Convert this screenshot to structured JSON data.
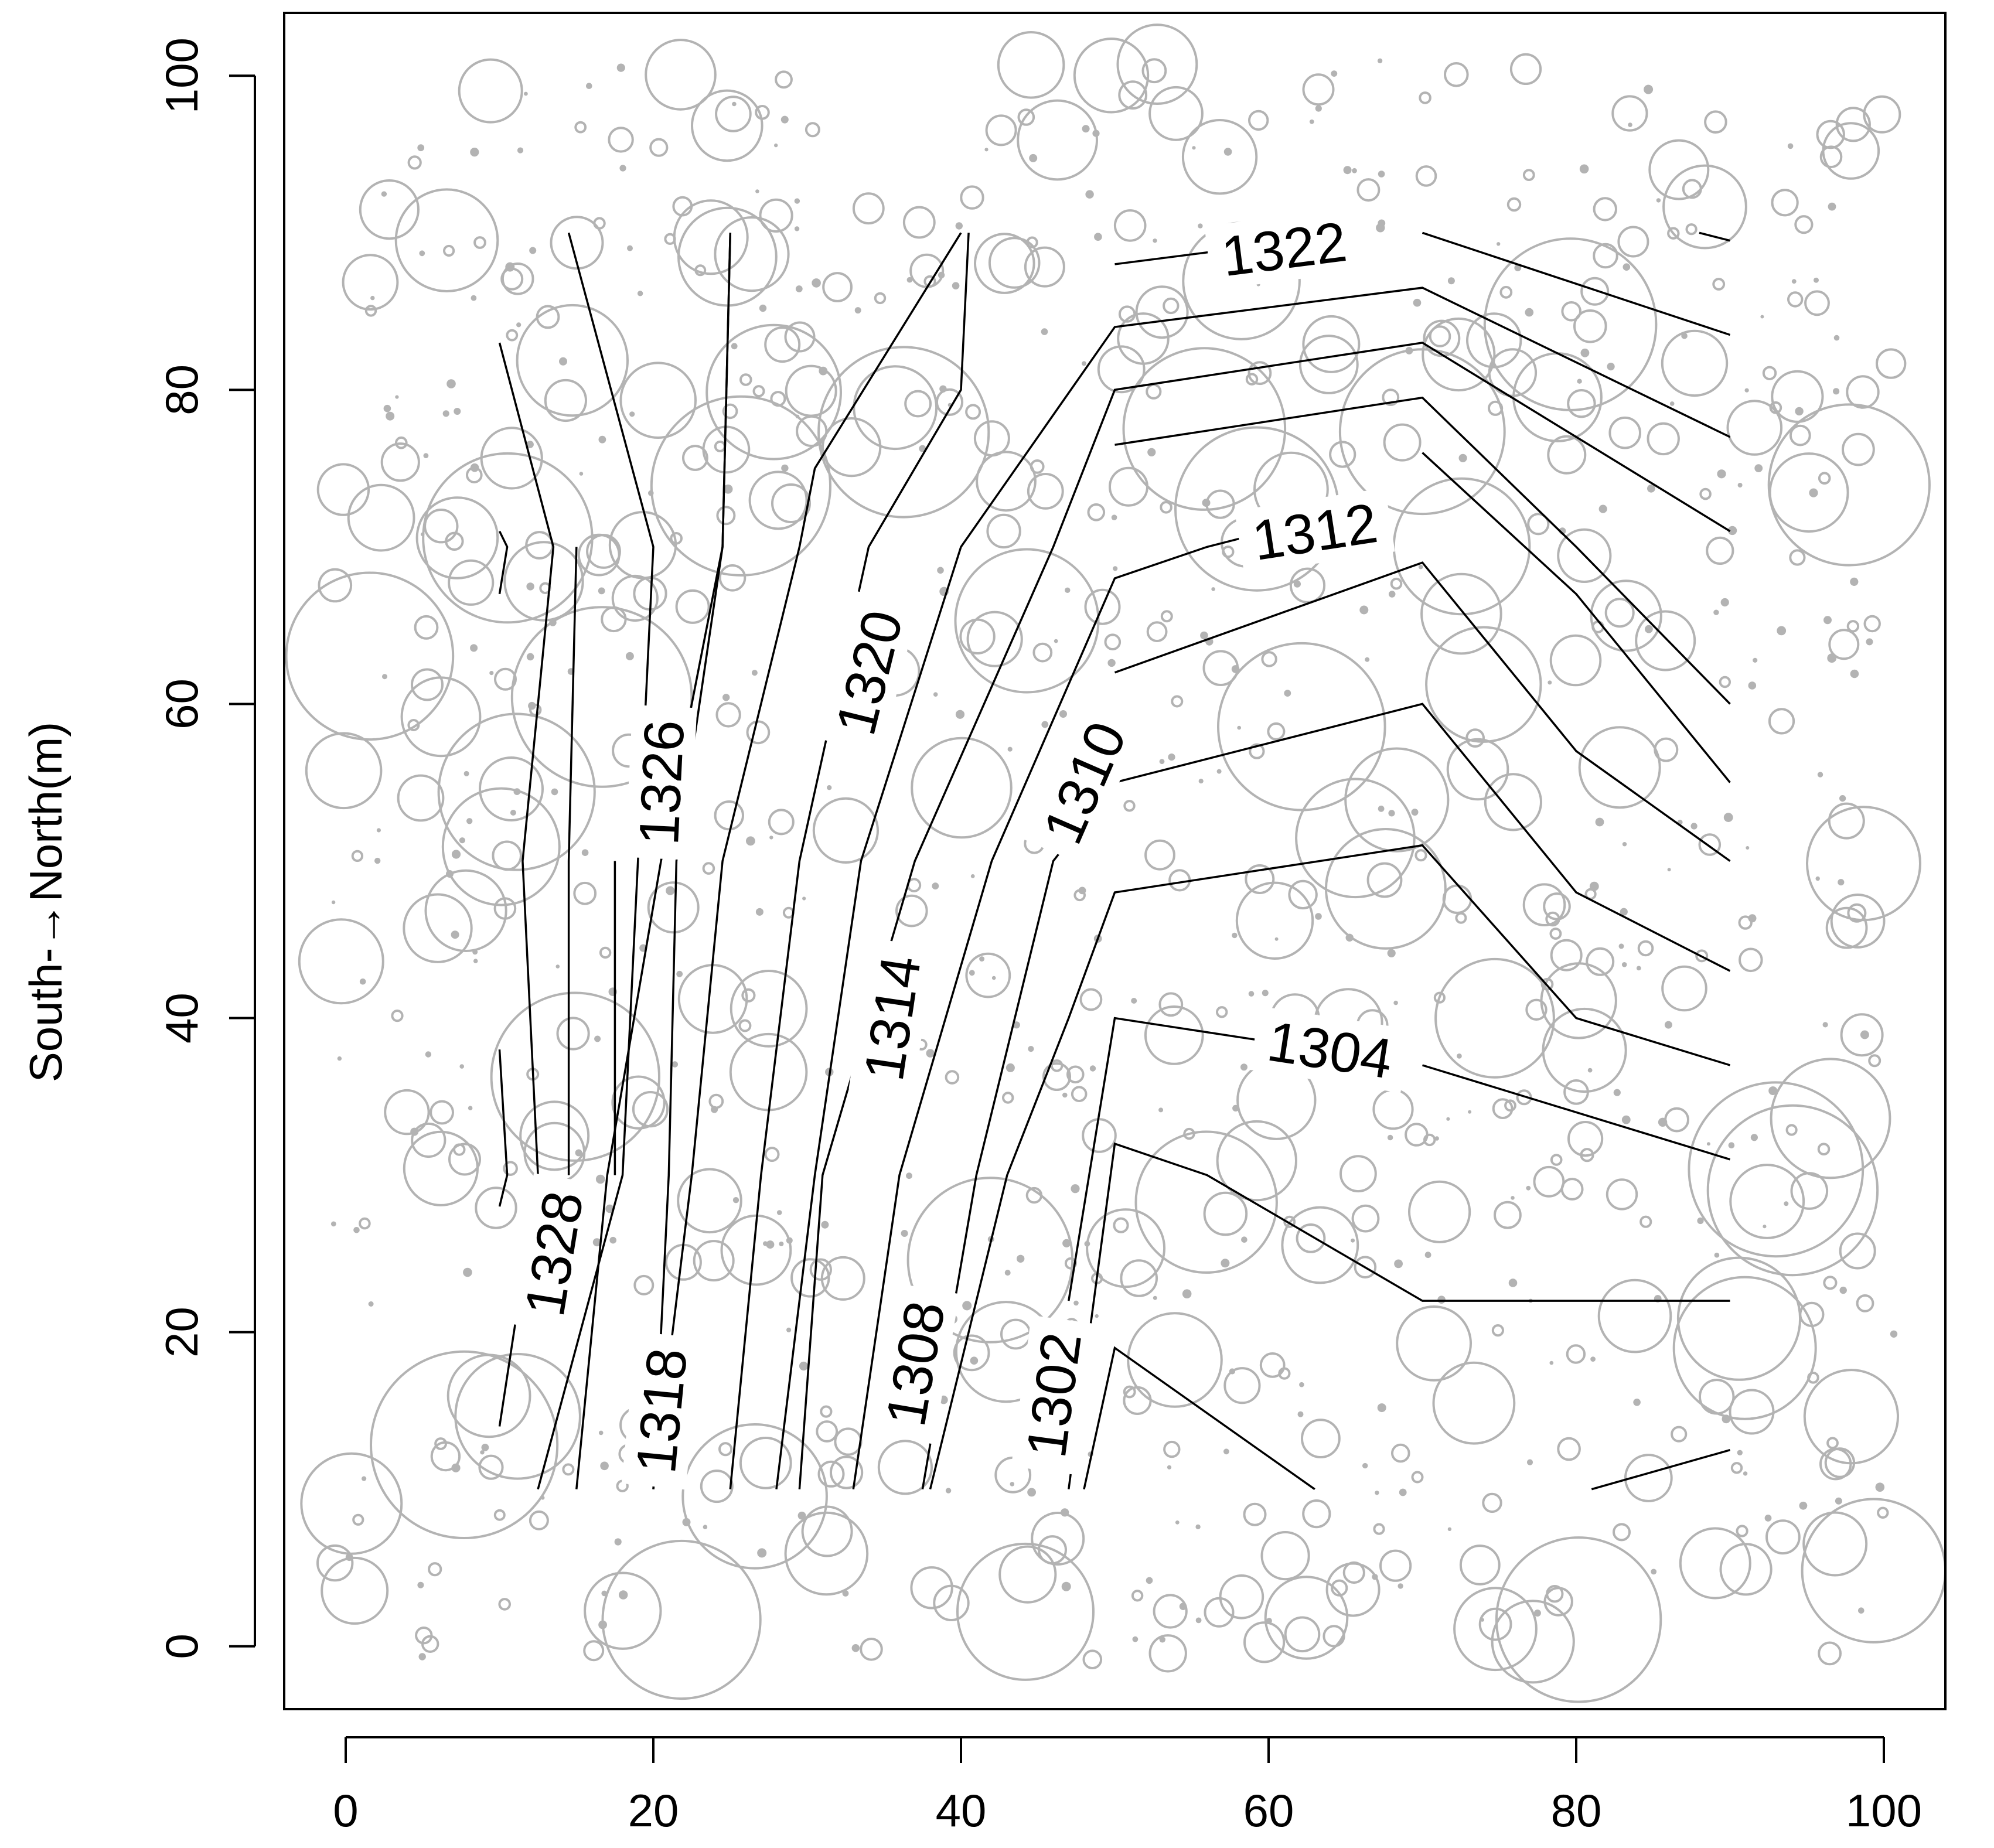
{
  "colors": {
    "contour": "#000000",
    "trees": "#b3b3b3",
    "frame": "#000000",
    "background": "#ffffff"
  },
  "chart_data": {
    "type": "scatter",
    "subtype": "contour map with tree-position circles",
    "title": "",
    "xlabel": "",
    "ylabel": "South-→North(m)",
    "xlim": [
      -4,
      104
    ],
    "ylim": [
      -4,
      104
    ],
    "xticks": [
      0,
      20,
      40,
      60,
      80,
      100
    ],
    "yticks": [
      0,
      20,
      40,
      60,
      80,
      100
    ],
    "grid": false,
    "legend": "none",
    "contours": [
      {
        "level": 1328,
        "label": "1328",
        "label_at": [
          13.5,
          25
        ],
        "segments": [
          [
            [
              10,
              71
            ],
            [
              10.5,
              70
            ],
            [
              10,
              67
            ]
          ],
          [
            [
              10,
              38
            ],
            [
              10.5,
              30
            ],
            [
              10,
              28
            ]
          ],
          [
            [
              10,
              83
            ],
            [
              13.5,
              70
            ],
            [
              11.5,
              50
            ],
            [
              12.5,
              30
            ],
            [
              10,
              14
            ]
          ]
        ]
      },
      {
        "level": 1326,
        "label": "1326",
        "label_at": [
          20.5,
          55
        ],
        "segments": [
          [
            [
              14.5,
              90
            ],
            [
              20,
              70
            ],
            [
              18,
              30
            ],
            [
              12.5,
              10
            ]
          ],
          [
            [
              14.5,
              30
            ],
            [
              14.5,
              50
            ],
            [
              15,
              70
            ]
          ]
        ]
      },
      {
        "level": 1318,
        "label": "1318",
        "label_at": [
          20.5,
          15
        ],
        "segments": [
          [
            [
              25,
              90
            ],
            [
              24.5,
              70
            ],
            [
              20.5,
              50
            ],
            [
              17,
              30
            ],
            [
              15,
              10
            ]
          ],
          [
            [
              17.5,
              30
            ],
            [
              17.5,
              50
            ]
          ],
          [
            [
              20,
              10
            ],
            [
              21,
              30
            ],
            [
              21.5,
              50
            ],
            [
              24.5,
              70
            ],
            [
              25,
              90
            ]
          ]
        ]
      },
      {
        "level": 1320,
        "label": "1320",
        "label_at": [
          34,
          62
        ],
        "segments": [
          [
            [
              40,
              90
            ],
            [
              30.5,
              75
            ],
            [
              29.5,
              70
            ],
            [
              24.5,
              50
            ],
            [
              22.5,
              30
            ],
            [
              20,
              10
            ]
          ],
          [
            [
              25,
              10
            ],
            [
              27,
              30
            ],
            [
              29.5,
              50
            ],
            [
              34,
              70
            ],
            [
              40,
              80
            ],
            [
              40.5,
              90
            ]
          ]
        ]
      },
      {
        "level": 1314,
        "label": "1314",
        "label_at": [
          35.5,
          40
        ],
        "segments": [
          [
            [
              28,
              10
            ],
            [
              30.5,
              30
            ],
            [
              33.5,
              50
            ],
            [
              40,
              70
            ],
            [
              50,
              84
            ],
            [
              70,
              86.5
            ],
            [
              90,
              77
            ]
          ],
          [
            [
              29.5,
              10
            ],
            [
              31,
              30
            ],
            [
              37,
              50
            ],
            [
              46,
              70
            ],
            [
              50,
              80
            ],
            [
              70,
              83
            ],
            [
              90,
              71
            ]
          ]
        ]
      },
      {
        "level": 1312,
        "label": "1312",
        "label_at": [
          63,
          71
        ],
        "segments": [
          [
            [
              50,
              76.5
            ],
            [
              70,
              79.5
            ],
            [
              80,
              70
            ],
            [
              90,
              60
            ]
          ],
          [
            [
              70,
              76
            ],
            [
              80,
              67
            ],
            [
              90,
              55
            ]
          ]
        ]
      },
      {
        "level": 1310,
        "label": "1310",
        "label_at": [
          48,
          55
        ],
        "segments": [
          [
            [
              33,
              10
            ],
            [
              36,
              30
            ],
            [
              42,
              50
            ],
            [
              50,
              68
            ],
            [
              56,
              70
            ],
            [
              60,
              71
            ]
          ],
          [
            [
              50,
              62
            ],
            [
              70,
              69
            ],
            [
              80,
              57
            ],
            [
              90,
              50
            ]
          ]
        ]
      },
      {
        "level": 1308,
        "label": "1308",
        "label_at": [
          37,
          18
        ],
        "segments": [
          [
            [
              37.5,
              10
            ],
            [
              41,
              30
            ],
            [
              46,
              50
            ],
            [
              50,
              55
            ],
            [
              70,
              60
            ],
            [
              80,
              48
            ],
            [
              90,
              43
            ]
          ],
          [
            [
              38,
              10
            ],
            [
              43,
              30
            ],
            [
              47,
              40
            ],
            [
              50,
              48
            ],
            [
              70,
              51
            ],
            [
              80,
              40
            ],
            [
              90,
              37
            ]
          ]
        ]
      },
      {
        "level": 1304,
        "label": "1304",
        "label_at": [
          64,
          38
        ],
        "segments": [
          [
            [
              47,
              22
            ],
            [
              50,
              40
            ],
            [
              60,
              38.5
            ]
          ],
          [
            [
              70,
              37
            ],
            [
              90,
              31
            ]
          ]
        ]
      },
      {
        "level": 1302,
        "label": "1302",
        "label_at": [
          46,
          16
        ],
        "segments": [
          [
            [
              47,
              10
            ],
            [
              50,
              32
            ],
            [
              56,
              30
            ],
            [
              70,
              22
            ],
            [
              90,
              22
            ]
          ],
          [
            [
              48,
              10
            ],
            [
              50,
              19
            ],
            [
              63,
              10
            ]
          ],
          [
            [
              81,
              10
            ],
            [
              90,
              12.5
            ]
          ]
        ]
      },
      {
        "level": 1322,
        "label": "1322",
        "label_at": [
          61,
          89
        ],
        "segments": [
          [
            [
              50,
              88
            ],
            [
              58,
              89
            ]
          ],
          [
            [
              70,
              90
            ],
            [
              90,
              83.5
            ]
          ],
          [
            [
              88,
              90
            ],
            [
              90,
              89.5
            ]
          ]
        ]
      }
    ],
    "trees_note": "grey circles mark stem positions; radius reflects stem size"
  }
}
